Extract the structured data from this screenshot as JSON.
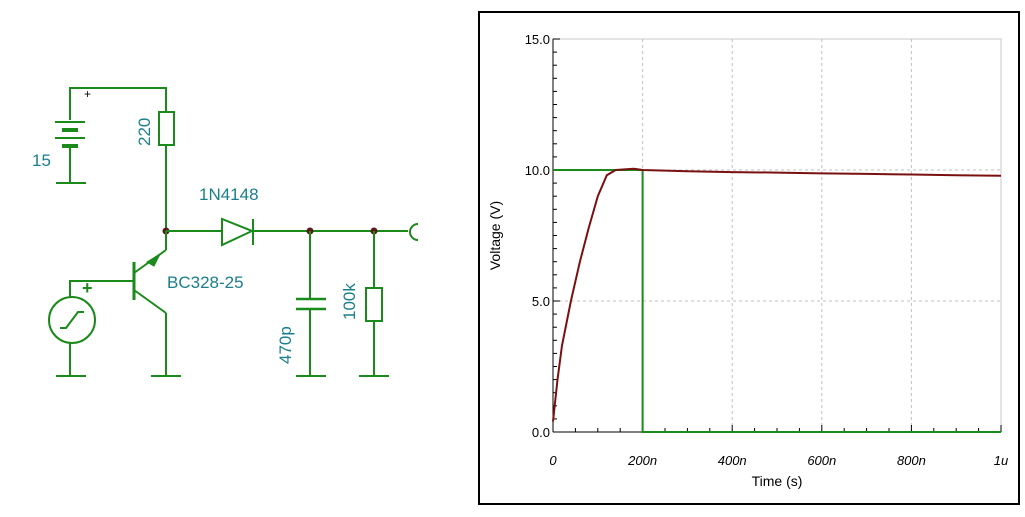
{
  "schematic": {
    "battery_label": "15",
    "battery_polarity": "+",
    "resistor_top_label": "220",
    "diode_label": "1N4148",
    "transistor_label": "BC328-25",
    "source_polarity": "+",
    "capacitor_label": "470p",
    "resistor_load_label": "100k"
  },
  "chart_data": {
    "type": "line",
    "title": "",
    "xlabel": "Time (s)",
    "ylabel": "Voltage (V)",
    "xlim": [
      0,
      1
    ],
    "ylim": [
      0,
      15
    ],
    "x_ticks": [
      {
        "v": 0,
        "label": "0"
      },
      {
        "v": 0.2,
        "label": "200n"
      },
      {
        "v": 0.4,
        "label": "400n"
      },
      {
        "v": 0.6,
        "label": "600n"
      },
      {
        "v": 0.8,
        "label": "800n"
      },
      {
        "v": 1.0,
        "label": "1u"
      }
    ],
    "y_ticks": [
      {
        "v": 0,
        "label": "0.0"
      },
      {
        "v": 5,
        "label": "5.0"
      },
      {
        "v": 10,
        "label": "10.0"
      },
      {
        "v": 15,
        "label": "15.0"
      }
    ],
    "grid": true,
    "series": [
      {
        "color": "#1a8a1a",
        "points": [
          [
            0,
            10
          ],
          [
            0.2,
            10
          ],
          [
            0.2,
            0
          ],
          [
            1.0,
            0
          ]
        ]
      },
      {
        "color": "#7a1010",
        "points": [
          [
            0,
            0.4
          ],
          [
            0.01,
            2.0
          ],
          [
            0.02,
            3.3
          ],
          [
            0.04,
            5.0
          ],
          [
            0.06,
            6.5
          ],
          [
            0.08,
            7.8
          ],
          [
            0.1,
            9.0
          ],
          [
            0.12,
            9.8
          ],
          [
            0.14,
            10.0
          ],
          [
            0.18,
            10.05
          ],
          [
            0.2,
            10.0
          ],
          [
            0.3,
            9.95
          ],
          [
            0.4,
            9.92
          ],
          [
            0.5,
            9.9
          ],
          [
            0.6,
            9.87
          ],
          [
            0.7,
            9.85
          ],
          [
            0.8,
            9.83
          ],
          [
            0.9,
            9.8
          ],
          [
            1.0,
            9.78
          ]
        ]
      }
    ]
  }
}
